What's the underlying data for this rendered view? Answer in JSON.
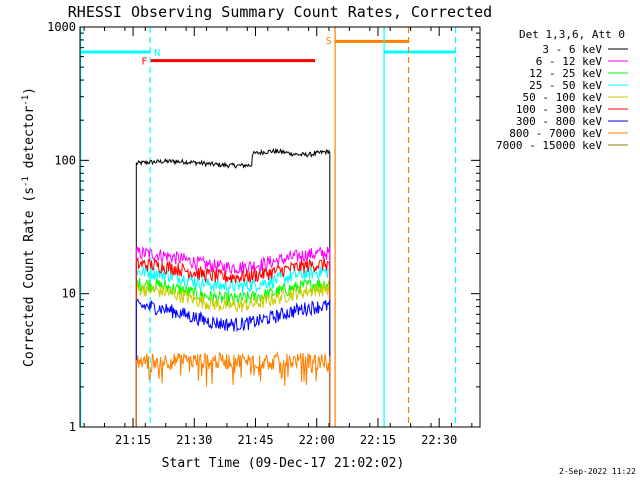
{
  "chart_data": {
    "type": "line",
    "title": "RHESSI Observing Summary Count Rates, Corrected",
    "xlabel": "Start Time (09-Dec-17 21:02:02)",
    "ylabel_main": "Corrected Count Rate (s",
    "ylabel_sup1": "-1",
    "ylabel_mid": " detector",
    "ylabel_sup2": "-1",
    "ylabel_end": ")",
    "footer": "2-Sep-2022 11:22",
    "y_scale": "log",
    "ylim": [
      1,
      1000
    ],
    "xlim_minutes": [
      0,
      98
    ],
    "x_ticks": [
      {
        "m": 13,
        "label": "21:15"
      },
      {
        "m": 28,
        "label": "21:30"
      },
      {
        "m": 43,
        "label": "21:45"
      },
      {
        "m": 58,
        "label": "22:00"
      },
      {
        "m": 73,
        "label": "22:15"
      },
      {
        "m": 88,
        "label": "22:30"
      }
    ],
    "y_ticks": [
      {
        "v": 1,
        "label": "1"
      },
      {
        "v": 10,
        "label": "10"
      },
      {
        "v": 100,
        "label": "100"
      },
      {
        "v": 1000,
        "label": "1000"
      }
    ],
    "legend_header": "Det 1,3,6, Att 0",
    "series": [
      {
        "name": "3 - 6 keV",
        "color": "#000000",
        "values_range": [
          88,
          122
        ],
        "trend": "rising"
      },
      {
        "name": "6 - 12 keV",
        "color": "#ff00ff",
        "values_range": [
          14,
          22
        ],
        "trend": "dip"
      },
      {
        "name": "12 - 25 keV",
        "color": "#00ff00",
        "values_range": [
          8,
          13
        ],
        "trend": "dip"
      },
      {
        "name": "25 - 50 keV",
        "color": "#00ffff",
        "values_range": [
          10,
          16
        ],
        "trend": "dip"
      },
      {
        "name": "50 - 100 keV",
        "color": "#cccc00",
        "values_range": [
          7,
          12
        ],
        "trend": "dip"
      },
      {
        "name": "100 - 300 keV",
        "color": "#ff0000",
        "values_range": [
          12,
          18
        ],
        "trend": "dip"
      },
      {
        "name": "300 - 800 keV",
        "color": "#0000ff",
        "values_range": [
          5,
          9
        ],
        "trend": "dip"
      },
      {
        "name": "800 - 7000 keV",
        "color": "#ff8000",
        "values_range": [
          2,
          5
        ],
        "trend": "flat"
      },
      {
        "name": "7000 - 15000 keV",
        "color": "#808000",
        "values_range": [],
        "trend": "none"
      }
    ],
    "flags": {
      "night": {
        "label": "N",
        "color": "#00ffff",
        "segments": [
          [
            0,
            17.2
          ],
          [
            74.5,
            92
          ]
        ],
        "value": 650
      },
      "flare": {
        "label": "F",
        "color": "#ff0000",
        "segments": [
          [
            17.3,
            57.6
          ]
        ],
        "value": 560
      },
      "saa": {
        "label": "S",
        "color": "#ff8000",
        "segments": [
          [
            62.5,
            80.5
          ]
        ],
        "value": 780
      }
    },
    "data_start_minute": 13.8,
    "data_end_minute": 61.2,
    "grid": false,
    "legend_position": "right"
  }
}
